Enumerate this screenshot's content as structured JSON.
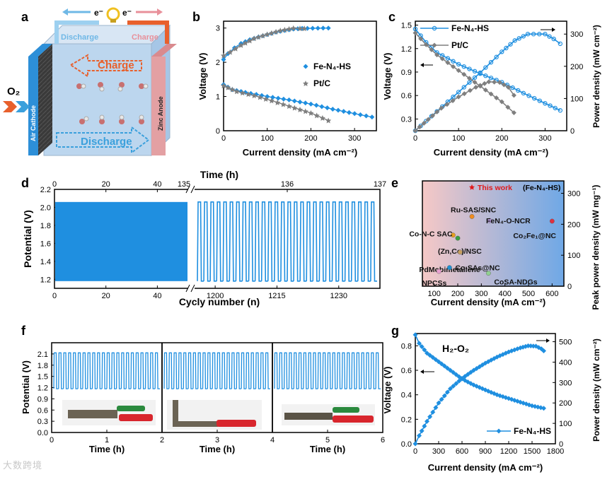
{
  "panel_letters": [
    "a",
    "b",
    "c",
    "d",
    "e",
    "f",
    "g"
  ],
  "schematic": {
    "top_electrons": [
      "e⁻",
      "e⁻"
    ],
    "discharge_wire": "Discharge",
    "charge_wire": "Charge",
    "gas": "O₂",
    "air_cathode": "Air Cathode",
    "zinc_anode": "Zinc Anode",
    "charge_arrow": "Charge",
    "discharge_arrow": "Discharge",
    "colors": {
      "cathode": "#3a3a3a",
      "anode": "#e3a0a3",
      "electrolyte": "#bcd6ee",
      "charge": "#e8602c",
      "discharge": "#3ba0dc"
    }
  },
  "watermark": "大数跨境",
  "colors": {
    "blue": "#1f8fe0",
    "gray": "#7f7f7f",
    "red": "#e0191b"
  },
  "chart_data": [
    {
      "id": "b",
      "type": "scatter",
      "xlabel": "Current density (mA cm⁻²)",
      "ylabel": "Voltage (V)",
      "xlim": [
        0,
        350
      ],
      "ylim": [
        0,
        3.2
      ],
      "xticks": [
        0,
        100,
        200,
        300
      ],
      "yticks": [
        0,
        1,
        2,
        3
      ],
      "series": [
        {
          "name": "Fe-N₄-HS",
          "color": "#1f8fe0",
          "charge": [
            [
              0,
              2.08
            ],
            [
              10,
              2.25
            ],
            [
              25,
              2.42
            ],
            [
              40,
              2.55
            ],
            [
              60,
              2.66
            ],
            [
              80,
              2.74
            ],
            [
              100,
              2.81
            ],
            [
              120,
              2.88
            ],
            [
              140,
              2.93
            ],
            [
              160,
              2.97
            ],
            [
              180,
              2.99
            ],
            [
              240,
              3.0
            ]
          ],
          "discharge": [
            [
              0,
              1.35
            ],
            [
              20,
              1.2
            ],
            [
              50,
              1.12
            ],
            [
              100,
              1.0
            ],
            [
              150,
              0.9
            ],
            [
              200,
              0.78
            ],
            [
              250,
              0.63
            ],
            [
              300,
              0.5
            ],
            [
              340,
              0.4
            ]
          ]
        },
        {
          "name": "Pt/C",
          "color": "#7f7f7f",
          "charge": [
            [
              0,
              2.2
            ],
            [
              15,
              2.3
            ],
            [
              40,
              2.5
            ],
            [
              70,
              2.7
            ],
            [
              100,
              2.82
            ],
            [
              130,
              2.93
            ],
            [
              160,
              3.0
            ],
            [
              175,
              2.99
            ],
            [
              185,
              2.99
            ]
          ],
          "discharge": [
            [
              0,
              1.32
            ],
            [
              30,
              1.15
            ],
            [
              70,
              1.03
            ],
            [
              110,
              0.88
            ],
            [
              150,
              0.72
            ],
            [
              200,
              0.52
            ],
            [
              240,
              0.3
            ]
          ]
        }
      ]
    },
    {
      "id": "c",
      "type": "line",
      "xlabel": "Current density (mA cm⁻²)",
      "ylabel": "Voltage (V)",
      "y2label": "Power density (mW cm⁻²)",
      "xlim": [
        0,
        350
      ],
      "ylim": [
        0.15,
        1.55
      ],
      "y2lim": [
        0,
        340
      ],
      "xticks": [
        0,
        100,
        200,
        300
      ],
      "yticks": [
        0.3,
        0.6,
        0.9,
        1.2,
        1.5
      ],
      "y2ticks": [
        0,
        100,
        200,
        300
      ],
      "series": [
        {
          "name": "Fe-N₄-HS",
          "color": "#1f8fe0",
          "voltage": [
            [
              0,
              1.45
            ],
            [
              25,
              1.28
            ],
            [
              50,
              1.15
            ],
            [
              100,
              1.0
            ],
            [
              150,
              0.88
            ],
            [
              200,
              0.77
            ],
            [
              250,
              0.63
            ],
            [
              300,
              0.5
            ],
            [
              335,
              0.41
            ]
          ],
          "power": [
            [
              0,
              0
            ],
            [
              25,
              30
            ],
            [
              50,
              60
            ],
            [
              100,
              120
            ],
            [
              150,
              180
            ],
            [
              200,
              245
            ],
            [
              230,
              280
            ],
            [
              260,
              300
            ],
            [
              300,
              300
            ],
            [
              320,
              285
            ],
            [
              335,
              270
            ]
          ]
        },
        {
          "name": "Pt/C",
          "color": "#7f7f7f",
          "voltage": [
            [
              0,
              1.4
            ],
            [
              25,
              1.25
            ],
            [
              50,
              1.12
            ],
            [
              100,
              0.92
            ],
            [
              150,
              0.72
            ],
            [
              200,
              0.52
            ],
            [
              228,
              0.38
            ]
          ],
          "power": [
            [
              0,
              0
            ],
            [
              30,
              35
            ],
            [
              60,
              70
            ],
            [
              100,
              105
            ],
            [
              140,
              135
            ],
            [
              170,
              152
            ],
            [
              195,
              150
            ],
            [
              215,
              135
            ],
            [
              228,
              110
            ]
          ]
        }
      ]
    },
    {
      "id": "d",
      "type": "line",
      "xlabel": "Cycly number (n)",
      "ylabel": "Potential (V)",
      "x2label": "Time (h)",
      "ylim": [
        1.1,
        2.2
      ],
      "yticks": [
        1.2,
        1.4,
        1.6,
        1.8,
        2.0,
        2.2
      ],
      "left_segment": {
        "xlim": [
          0,
          52
        ],
        "xticks": [
          0,
          20,
          40
        ],
        "top_ticks": [
          0,
          20,
          40
        ],
        "top_end": 135
      },
      "right_segment": {
        "xlim": [
          1195,
          1240
        ],
        "xticks": [
          1200,
          1215,
          1230
        ],
        "top_ticks": [
          136,
          137
        ]
      },
      "charge_voltage": 2.06,
      "discharge_voltage": 1.18,
      "color": "#1f8fe0"
    },
    {
      "id": "e",
      "type": "scatter",
      "xlabel": "Current density (mA cm⁻²)",
      "ylabel": "Peak power density (mW mg⁻¹)",
      "xlim": [
        50,
        650
      ],
      "ylim": [
        0,
        340
      ],
      "xticks": [
        100,
        200,
        300,
        400,
        500,
        600
      ],
      "yticks": [
        0,
        100,
        200,
        300
      ],
      "points": [
        {
          "label": "This work",
          "suffix": "(Fe-N₄-HS)",
          "x": 260,
          "y": 320,
          "color": "#e0191b",
          "marker": "star"
        },
        {
          "label": "Ru-SAS/SNC",
          "x": 260,
          "y": 225,
          "color": "#f08c1e"
        },
        {
          "label": "FeN₄-O-NCR",
          "x": 335,
          "y": 212,
          "color": "#b49ad8"
        },
        {
          "label": "Co₂Fe₁@NC",
          "x": 600,
          "y": 210,
          "color": "#e03040"
        },
        {
          "label": "Co-N-C SAC",
          "x": 180,
          "y": 165,
          "color": "#e8a020"
        },
        {
          "label": "(Zn,Co)/NSC",
          "x": 200,
          "y": 155,
          "color": "#3aa040"
        },
        {
          "label": "PdMobimetallene",
          "x": 210,
          "y": 110,
          "color": "#c8a060"
        },
        {
          "label": "Co-SAs@NC",
          "x": 165,
          "y": 60,
          "color": "#2090d0"
        },
        {
          "label": "NPCSs",
          "x": 120,
          "y": 48,
          "color": "#e8a0d0"
        },
        {
          "label": "CoSA-NDGs",
          "x": 330,
          "y": 42,
          "color": "#90d090"
        }
      ]
    },
    {
      "id": "f",
      "type": "line",
      "xlabel": "Time (h)",
      "ylabel": "Potential (V)",
      "ylim": [
        0,
        2.4
      ],
      "yticks": [
        0.0,
        0.3,
        0.6,
        0.9,
        1.2,
        1.5,
        1.8,
        2.1
      ],
      "xlim": [
        0,
        6
      ],
      "xticks": [
        0,
        1,
        2,
        3,
        4,
        5,
        6
      ],
      "charge_voltage": 2.13,
      "discharge_voltage": 1.17,
      "color": "#1f8fe0"
    },
    {
      "id": "g",
      "type": "line",
      "annotation": "H₂-O₂",
      "xlabel": "Current density (mA cm⁻²)",
      "ylabel": "Voltage (V)",
      "y2label": "Power density (mW cm⁻²)",
      "xlim": [
        0,
        1800
      ],
      "ylim": [
        0,
        0.9
      ],
      "y2lim": [
        0,
        540
      ],
      "xticks": [
        0,
        300,
        600,
        900,
        1200,
        1500,
        1800
      ],
      "yticks": [
        0.0,
        0.2,
        0.4,
        0.6,
        0.8
      ],
      "y2ticks": [
        0,
        100,
        200,
        300,
        400,
        500
      ],
      "series": [
        {
          "name": "Fe-N₄-HS",
          "color": "#1f8fe0",
          "voltage": [
            [
              0,
              0.89
            ],
            [
              50,
              0.82
            ],
            [
              150,
              0.74
            ],
            [
              300,
              0.67
            ],
            [
              450,
              0.6
            ],
            [
              600,
              0.53
            ],
            [
              750,
              0.48
            ],
            [
              900,
              0.44
            ],
            [
              1050,
              0.4
            ],
            [
              1200,
              0.37
            ],
            [
              1350,
              0.34
            ],
            [
              1500,
              0.31
            ],
            [
              1650,
              0.29
            ]
          ],
          "power": [
            [
              0,
              0
            ],
            [
              50,
              40
            ],
            [
              150,
              110
            ],
            [
              300,
              200
            ],
            [
              450,
              270
            ],
            [
              600,
              320
            ],
            [
              750,
              360
            ],
            [
              900,
              395
            ],
            [
              1050,
              425
            ],
            [
              1200,
              450
            ],
            [
              1350,
              470
            ],
            [
              1450,
              480
            ],
            [
              1550,
              478
            ],
            [
              1620,
              465
            ],
            [
              1650,
              455
            ]
          ]
        }
      ]
    }
  ]
}
